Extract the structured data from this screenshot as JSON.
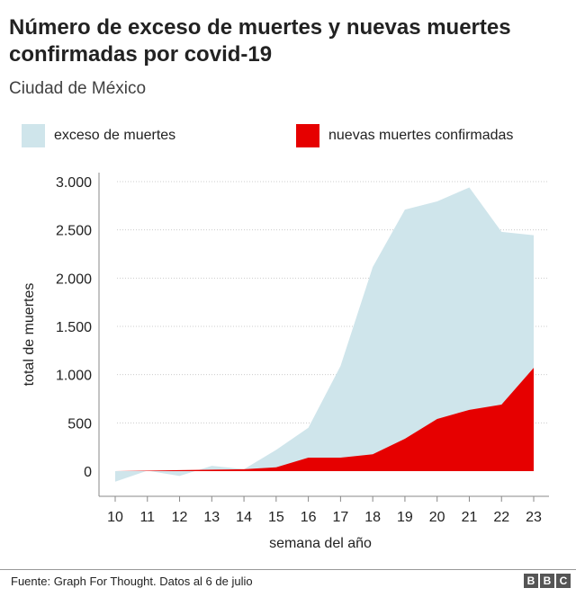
{
  "title": "Número de exceso de muertes y nuevas muertes confirmadas por covid-19",
  "subtitle": "Ciudad de México",
  "footer": {
    "source": "Fuente: Graph For Thought. Datos al 6 de julio",
    "logo": "BBC"
  },
  "chart_data": {
    "type": "area",
    "title": "Número de exceso de muertes y nuevas muertes confirmadas por covid-19",
    "subtitle": "Ciudad de México",
    "xlabel": "semana del año",
    "ylabel": "total de muertes",
    "x": [
      10,
      11,
      12,
      13,
      14,
      15,
      16,
      17,
      18,
      19,
      20,
      21,
      22,
      23
    ],
    "ylim": [
      -200,
      3100
    ],
    "yticks": [
      0,
      500,
      1000,
      1500,
      2000,
      2500,
      3000
    ],
    "ytick_labels": [
      "0",
      "500",
      "1.000",
      "1.500",
      "2.000",
      "2.500",
      "3.000"
    ],
    "grid": true,
    "legend_position": "top",
    "series": [
      {
        "name": "exceso de muertes",
        "color": "#cfe5eb",
        "values": [
          -110,
          5,
          -50,
          55,
          20,
          220,
          450,
          1090,
          2115,
          2710,
          2795,
          2940,
          2480,
          2445
        ]
      },
      {
        "name": "nuevas muertes confirmadas",
        "color": "#e60000",
        "values": [
          0,
          5,
          10,
          15,
          20,
          40,
          140,
          140,
          175,
          335,
          540,
          635,
          690,
          1070
        ]
      }
    ]
  }
}
